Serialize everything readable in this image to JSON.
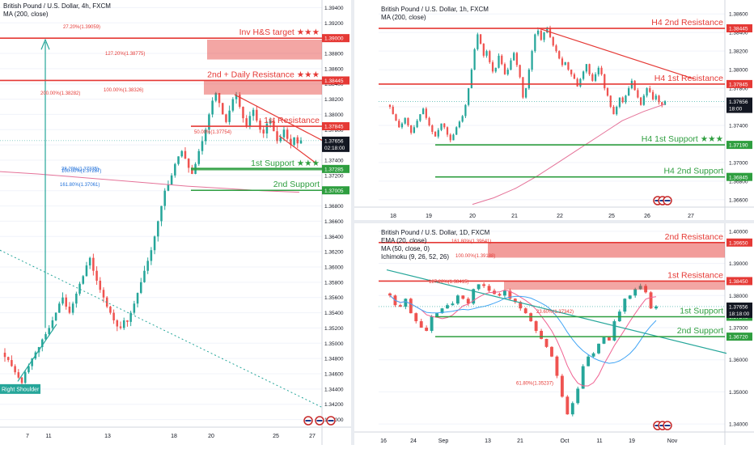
{
  "colors": {
    "up": "#26a69a",
    "down": "#ef5350",
    "resistance": "#e53935",
    "support": "#2e9e3f",
    "ma200": "#e57399",
    "ema20": "#f06292",
    "ma50": "#42a5f5",
    "grid": "#f0f3fa",
    "axis_text": "#131722",
    "pricetag_bg": "#131722"
  },
  "chart_data": [
    {
      "type": "candlestick",
      "panel": "left",
      "title": "British Pound / U.S. Dollar, 4h, FXCM",
      "indicator_label": "MA (200, close)",
      "x_ticks": [
        "7",
        "11",
        "13",
        "18",
        "20",
        "25",
        "27"
      ],
      "y_ticks": [
        "1.34000",
        "1.34200",
        "1.34400",
        "1.34600",
        "1.34800",
        "1.35000",
        "1.35200",
        "1.35400",
        "1.35600",
        "1.35800",
        "1.36000",
        "1.36200",
        "1.36400",
        "1.36600",
        "1.36800",
        "1.37000",
        "1.37200",
        "1.37400",
        "1.37600",
        "1.37800",
        "1.38000",
        "1.38200",
        "1.38400",
        "1.38600",
        "1.38800",
        "1.39000",
        "1.39200",
        "1.39400"
      ],
      "ylim": [
        1.339,
        1.395
      ],
      "levels": [
        {
          "name": "Inv H&S target ★★★",
          "price": 1.39,
          "tag": "1.39000",
          "kind": "resistance"
        },
        {
          "name": "2nd + Daily Resistance ★★★",
          "price": 1.38445,
          "tag": "1.38445",
          "kind": "resistance"
        },
        {
          "name": "1st Resistance",
          "price": 1.37845,
          "tag": "1.37845",
          "kind": "resistance"
        },
        {
          "name": "1st Support ★★★",
          "price": 1.37285,
          "tag": "1.37285",
          "kind": "support"
        },
        {
          "name": "2nd Support",
          "price": 1.37005,
          "tag": "1.37005",
          "kind": "support"
        }
      ],
      "current_price": {
        "value": "1.37656",
        "countdown": "02:18:00"
      },
      "fib_labels": [
        "27.20%(1.39059)",
        "127.20%(1.38775)",
        "200.00%(1.38282)",
        "100.00%(1.38326)",
        "50.00%(1.37754)",
        "38.20%(1.37235)",
        "100.00%(1.37287)",
        "161.80%(1.37061)"
      ],
      "annotations": [
        "Right Shoulder"
      ],
      "close_path": [
        1.3482,
        1.3478,
        1.347,
        1.3462,
        1.3455,
        1.3448,
        1.3462,
        1.347,
        1.348,
        1.3488,
        1.3495,
        1.3505,
        1.3512,
        1.352,
        1.353,
        1.354,
        1.3552,
        1.356,
        1.3548,
        1.354,
        1.3552,
        1.3565,
        1.3578,
        1.3588,
        1.3602,
        1.3612,
        1.3595,
        1.3582,
        1.357,
        1.356,
        1.3548,
        1.354,
        1.353,
        1.3522,
        1.352,
        1.353,
        1.3528,
        1.354,
        1.3552,
        1.3566,
        1.358,
        1.3595,
        1.3608,
        1.3622,
        1.364,
        1.366,
        1.368,
        1.37,
        1.3708,
        1.372,
        1.3735,
        1.3745,
        1.3752,
        1.3742,
        1.373,
        1.3722,
        1.3735,
        1.3752,
        1.3765,
        1.378,
        1.38,
        1.3818,
        1.3828,
        1.3815,
        1.38,
        1.379,
        1.3805,
        1.382,
        1.3826,
        1.381,
        1.3795,
        1.3785,
        1.3798,
        1.3806,
        1.3792,
        1.378,
        1.3775,
        1.3788,
        1.3792,
        1.3778,
        1.3765,
        1.377,
        1.378,
        1.3768,
        1.376,
        1.377,
        1.3762,
        1.3766
      ]
    },
    {
      "type": "candlestick",
      "panel": "top-right",
      "title": "British Pound / U.S. Dollar, 1h, FXCM",
      "indicator_label": "MA (200, close)",
      "x_ticks": [
        "18",
        "19",
        "20",
        "21",
        "22",
        "25",
        "26",
        "27"
      ],
      "y_ticks": [
        "1.36600",
        "1.36800",
        "1.37000",
        "1.37200",
        "1.37400",
        "1.37600",
        "1.37800",
        "1.38000",
        "1.38200",
        "1.38400",
        "1.38600"
      ],
      "ylim": [
        1.3652,
        1.3875
      ],
      "levels": [
        {
          "name": "H4 2nd Resistance",
          "price": 1.38445,
          "tag": "1.38445",
          "kind": "resistance"
        },
        {
          "name": "H4 1st Resistance",
          "price": 1.37845,
          "tag": "1.37845",
          "kind": "resistance"
        },
        {
          "name": "H4 1st Support ★★★",
          "price": 1.3719,
          "tag": "1.37190",
          "kind": "support"
        },
        {
          "name": "H4 2nd Support",
          "price": 1.36845,
          "tag": "1.36845",
          "kind": "support"
        }
      ],
      "current_price": {
        "value": "1.37656",
        "countdown": "18:00"
      },
      "close_path": [
        1.376,
        1.3752,
        1.3745,
        1.3738,
        1.3742,
        1.3748,
        1.374,
        1.3732,
        1.3738,
        1.3745,
        1.3752,
        1.3758,
        1.3748,
        1.374,
        1.3733,
        1.3728,
        1.3735,
        1.3742,
        1.3738,
        1.373,
        1.3724,
        1.373,
        1.3738,
        1.3744,
        1.375,
        1.3762,
        1.378,
        1.38,
        1.3822,
        1.3838,
        1.3828,
        1.3815,
        1.382,
        1.3808,
        1.3798,
        1.3802,
        1.3815,
        1.3806,
        1.3795,
        1.38,
        1.381,
        1.3818,
        1.3805,
        1.3792,
        1.377,
        1.378,
        1.38,
        1.382,
        1.3838,
        1.3842,
        1.3832,
        1.384,
        1.3845,
        1.3835,
        1.3826,
        1.382,
        1.3812,
        1.3805,
        1.3808,
        1.38,
        1.3795,
        1.379,
        1.3782,
        1.379,
        1.3798,
        1.3806,
        1.3795,
        1.3788,
        1.3795,
        1.3802,
        1.3795,
        1.378,
        1.3772,
        1.376,
        1.3752,
        1.376,
        1.377,
        1.3765,
        1.3772,
        1.378,
        1.3788,
        1.3778,
        1.377,
        1.3762,
        1.3772,
        1.378,
        1.3776,
        1.3768,
        1.3772,
        1.3765,
        1.3762,
        1.3766
      ]
    },
    {
      "type": "candlestick",
      "panel": "bottom-right",
      "title": "British Pound / U.S. Dollar, 1D, FXCM",
      "indicator_labels": [
        "EMA (20, close)",
        "MA (50, close, 0)",
        "Ichimoku (9, 26, 52, 26)"
      ],
      "x_ticks": [
        "16",
        "24",
        "Sep",
        "13",
        "21",
        "Oct",
        "11",
        "19",
        "Nov"
      ],
      "y_ticks": [
        "1.34000",
        "1.35000",
        "1.36000",
        "1.37000",
        "1.38000",
        "1.39000",
        "1.40000"
      ],
      "ylim": [
        1.3375,
        1.4025
      ],
      "levels": [
        {
          "name": "2nd Resistance",
          "price": 1.3965,
          "tag": "1.39650",
          "kind": "resistance"
        },
        {
          "name": "1st Resistance",
          "price": 1.3845,
          "tag": "1.38450",
          "kind": "resistance"
        },
        {
          "name": "1st Support",
          "price": 1.3734,
          "tag": "1.37340",
          "kind": "support"
        },
        {
          "name": "2nd Support",
          "price": 1.3672,
          "tag": "1.36720",
          "kind": "support"
        }
      ],
      "current_price": {
        "value": "1.37656",
        "countdown": "18:18:00"
      },
      "fib_labels": [
        "161.80%(1.39641)",
        "100.00%(1.39188)",
        "127.20%(1.38415)",
        "23.60%(1.37342)",
        "61.80%(1.35237)"
      ],
      "close_path": [
        1.38,
        1.377,
        1.3765,
        1.379,
        1.3745,
        1.372,
        1.37,
        1.369,
        1.3735,
        1.3745,
        1.376,
        1.377,
        1.3775,
        1.38,
        1.379,
        1.3775,
        1.382,
        1.3835,
        1.383,
        1.3815,
        1.3805,
        1.38,
        1.3815,
        1.379,
        1.378,
        1.376,
        1.3745,
        1.372,
        1.369,
        1.3665,
        1.364,
        1.361,
        1.355,
        1.3485,
        1.343,
        1.3465,
        1.351,
        1.358,
        1.361,
        1.362,
        1.365,
        1.367,
        1.366,
        1.372,
        1.375,
        1.379,
        1.38,
        1.382,
        1.383,
        1.381,
        1.376,
        1.3766
      ]
    }
  ]
}
